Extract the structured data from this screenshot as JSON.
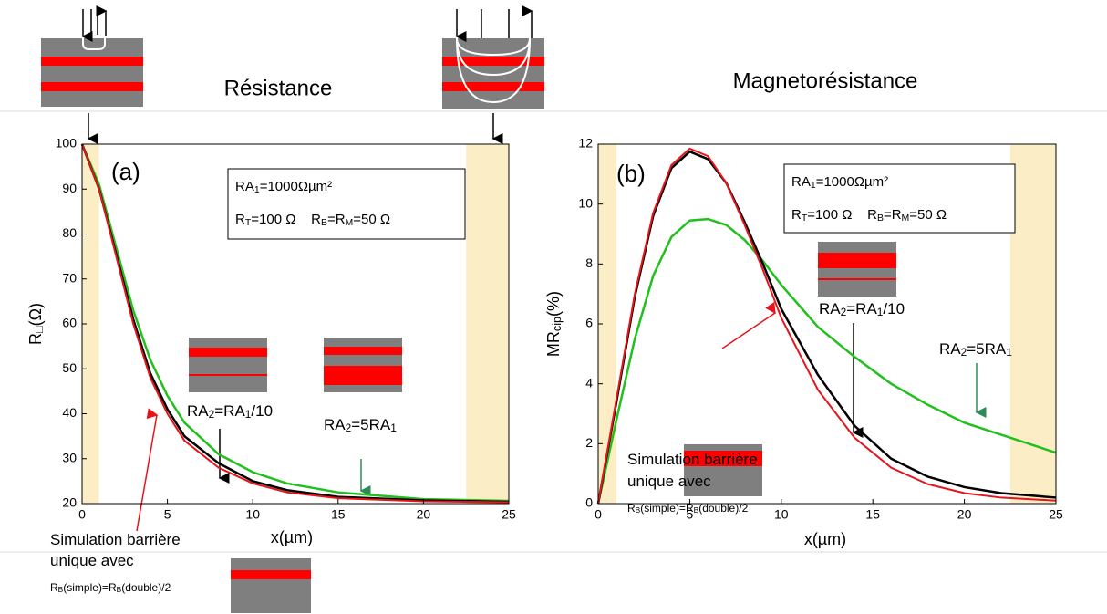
{
  "header": {
    "left": "Résistance",
    "right": "Magnetorésistance"
  },
  "chart_data": [
    {
      "type": "line",
      "panel_label": "(a)",
      "xlabel": "x(µm)",
      "ylabel": [
        "R",
        "□",
        "(Ω)"
      ],
      "xlim": [
        0,
        25
      ],
      "ylim": [
        20,
        100
      ],
      "xticks": [
        0,
        5,
        10,
        15,
        20,
        25
      ],
      "yticks": [
        20,
        30,
        40,
        50,
        60,
        70,
        80,
        90,
        100
      ],
      "shaded_regions": [
        [
          0,
          1
        ],
        [
          22.5,
          25
        ]
      ],
      "shade_color": "#fbeec6",
      "x": [
        0,
        1,
        2,
        3,
        4,
        5,
        6,
        8,
        10,
        12,
        15,
        20,
        25
      ],
      "series": [
        {
          "color": "#22c01c",
          "values": [
            100,
            91,
            77,
            63,
            52,
            44,
            38,
            31,
            27,
            24.5,
            22.5,
            21,
            20.6
          ]
        },
        {
          "color": "#000000",
          "values": [
            100,
            90,
            75.5,
            61,
            49,
            41,
            35,
            29,
            25,
            23,
            21.5,
            20.7,
            20.4
          ]
        },
        {
          "color": "#e8141a",
          "values": [
            100,
            90,
            75,
            60,
            48,
            40,
            34,
            28,
            24.5,
            22.5,
            21.2,
            20.5,
            20.3
          ]
        }
      ],
      "info_box": [
        [
          "RA",
          "1",
          "=1000Ωµm²"
        ],
        [
          "R",
          "T",
          "=100 Ω    R",
          "B",
          "=R",
          "M",
          "=50 Ω"
        ]
      ],
      "annotations": [
        {
          "color": "#000000",
          "lines": [
            [
              "RA",
              "2",
              "=RA",
              "1",
              "/10"
            ]
          ]
        },
        {
          "color": "#1a9a1a",
          "lines": [
            [
              "RA",
              "2",
              "=5RA",
              "1"
            ]
          ]
        },
        {
          "color": "#e8141a",
          "lines": [
            [
              "Simulation barrière"
            ],
            [
              "unique avec"
            ],
            [
              "R",
              "B",
              "(simple)=R",
              "B",
              "(double)/2"
            ]
          ]
        }
      ]
    },
    {
      "type": "line",
      "panel_label": "(b)",
      "xlabel": "x(µm)",
      "ylabel": [
        "MR",
        "cip",
        "(%)"
      ],
      "xlim": [
        0,
        25
      ],
      "ylim": [
        0,
        12
      ],
      "xticks": [
        0,
        5,
        10,
        15,
        20,
        25
      ],
      "yticks": [
        0,
        2,
        4,
        6,
        8,
        10,
        12
      ],
      "shaded_regions": [
        [
          0,
          1
        ],
        [
          22.5,
          25
        ]
      ],
      "shade_color": "#fbeec6",
      "x": [
        0,
        1,
        2,
        3,
        4,
        5,
        6,
        7,
        8,
        9,
        10,
        12,
        14,
        16,
        18,
        20,
        22,
        25
      ],
      "series": [
        {
          "color": "#22c01c",
          "values": [
            0,
            2.8,
            5.5,
            7.6,
            8.9,
            9.45,
            9.5,
            9.3,
            8.8,
            8.1,
            7.3,
            5.9,
            4.9,
            4.0,
            3.3,
            2.7,
            2.3,
            1.7
          ]
        },
        {
          "color": "#000000",
          "values": [
            0,
            3.4,
            6.9,
            9.6,
            11.2,
            11.75,
            11.5,
            10.7,
            9.4,
            8.0,
            6.5,
            4.3,
            2.6,
            1.5,
            0.9,
            0.55,
            0.35,
            0.2
          ]
        },
        {
          "color": "#e8141a",
          "values": [
            0,
            3.5,
            7,
            9.7,
            11.3,
            11.85,
            11.6,
            10.7,
            9.3,
            7.8,
            6.2,
            3.8,
            2.2,
            1.2,
            0.65,
            0.35,
            0.2,
            0.1
          ]
        }
      ],
      "info_box": [
        [
          "RA",
          "1",
          "=1000Ωµm²"
        ],
        [
          "R",
          "T",
          "=100 Ω    R",
          "B",
          "=R",
          "M",
          "=50 Ω"
        ]
      ],
      "annotations": [
        {
          "color": "#000000",
          "lines": [
            [
              "RA",
              "2",
              "=RA",
              "1",
              "/10"
            ]
          ]
        },
        {
          "color": "#1a9a1a",
          "lines": [
            [
              "RA",
              "2",
              "=5RA",
              "1"
            ]
          ]
        },
        {
          "color": "#e8141a",
          "lines": [
            [
              "Simulation barrière"
            ],
            [
              "unique avec"
            ],
            [
              "R",
              "B",
              "(simple)=R",
              "B",
              "(double)/2"
            ]
          ]
        }
      ]
    }
  ]
}
